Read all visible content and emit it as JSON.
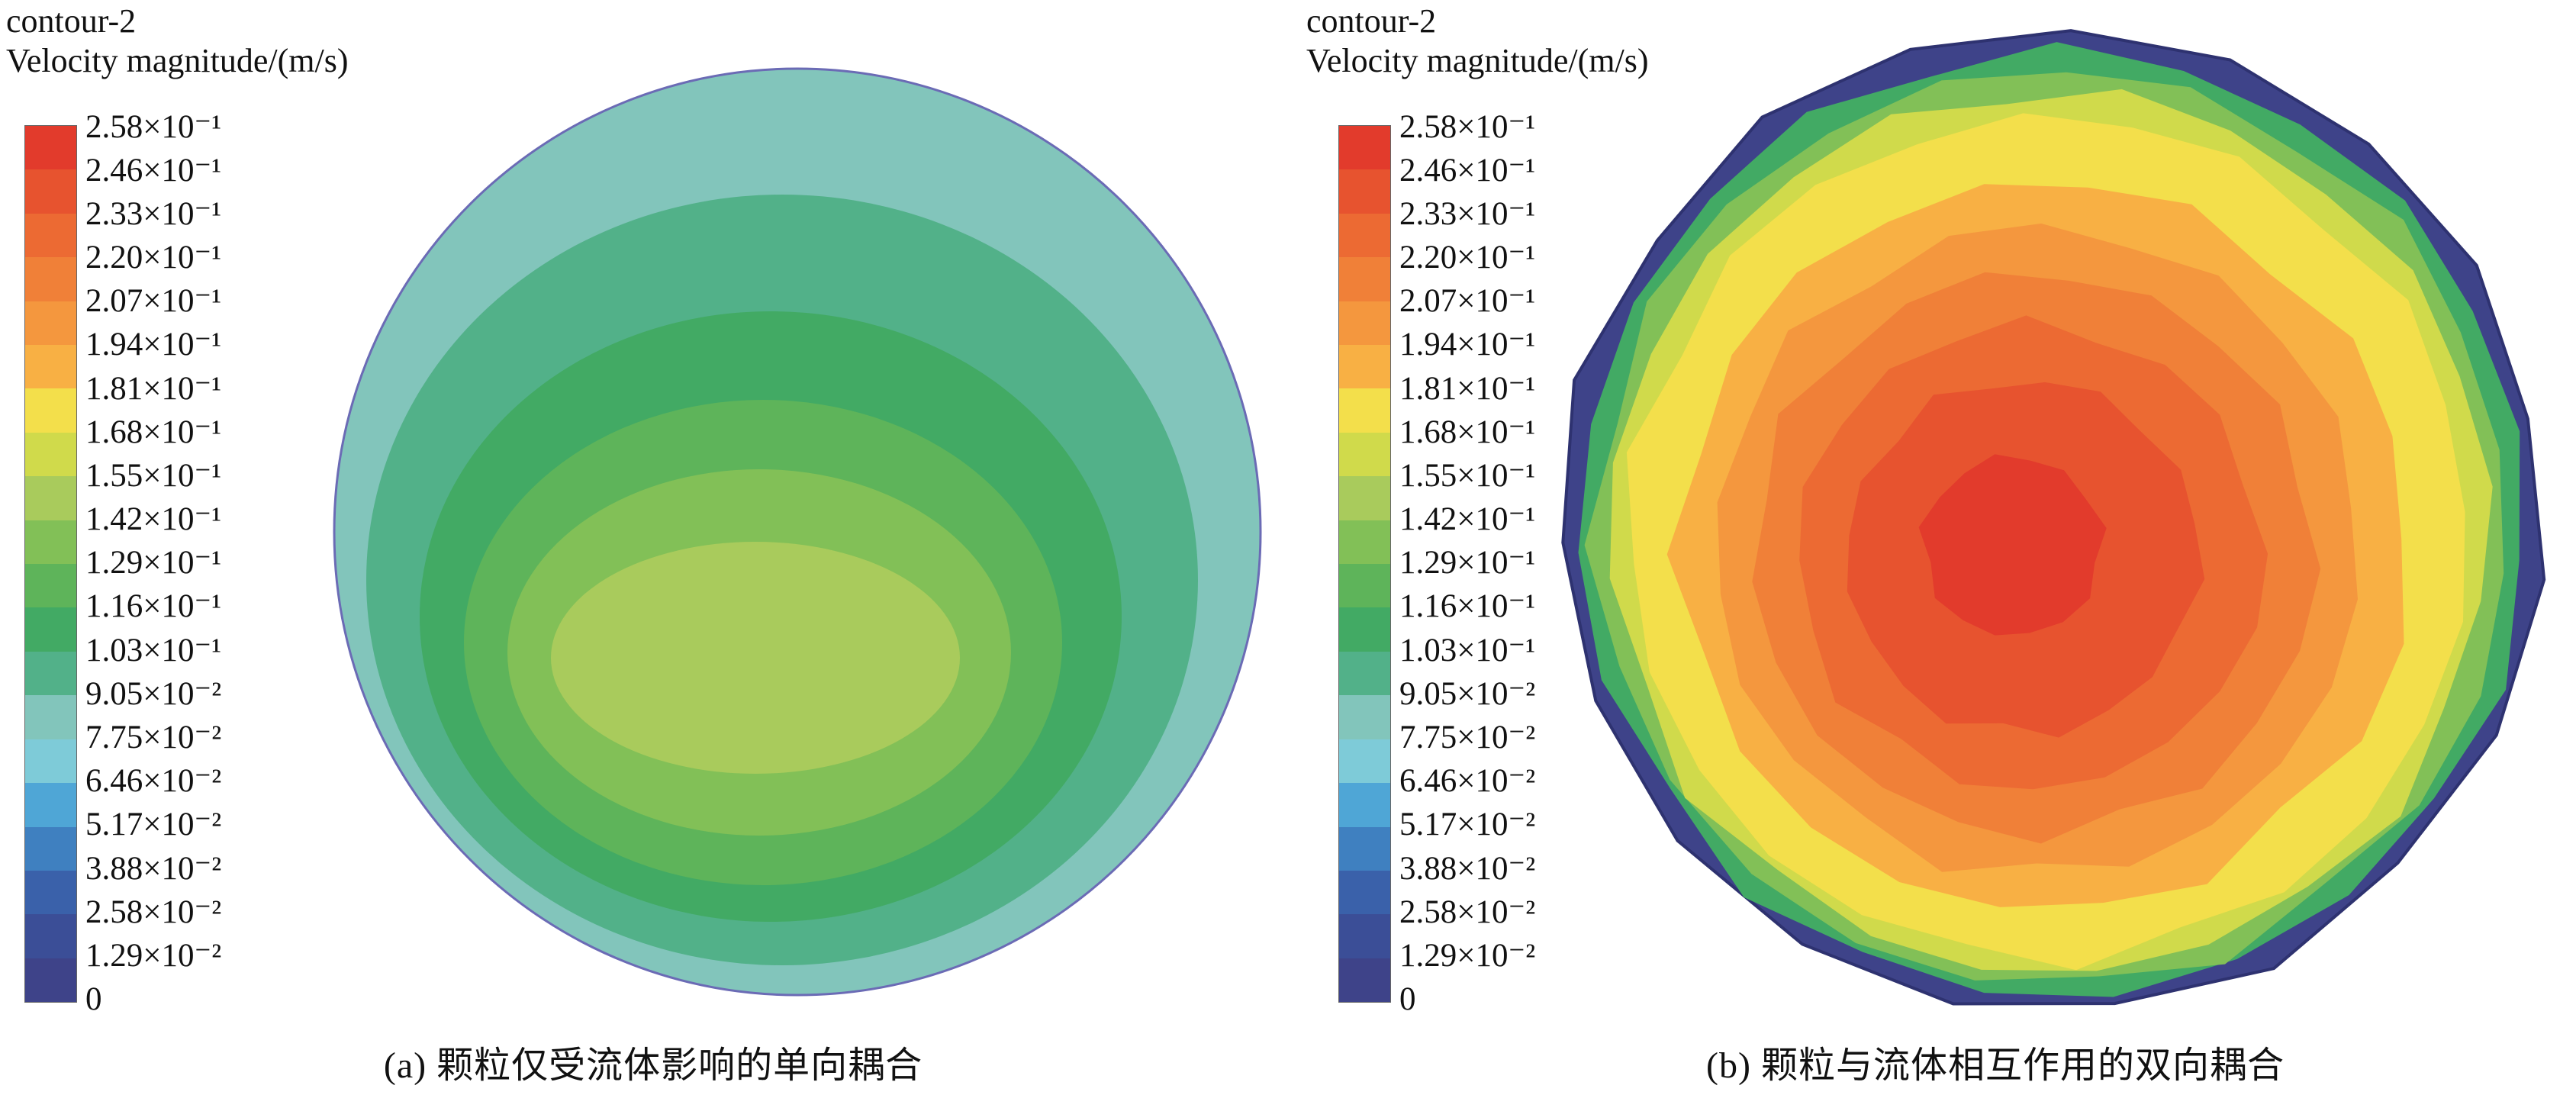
{
  "legend": {
    "labels": [
      "2.58×10⁻¹",
      "2.46×10⁻¹",
      "2.33×10⁻¹",
      "2.20×10⁻¹",
      "2.07×10⁻¹",
      "1.94×10⁻¹",
      "1.81×10⁻¹",
      "1.68×10⁻¹",
      "1.55×10⁻¹",
      "1.42×10⁻¹",
      "1.29×10⁻¹",
      "1.16×10⁻¹",
      "1.03×10⁻¹",
      "9.05×10⁻²",
      "7.75×10⁻²",
      "6.46×10⁻²",
      "5.17×10⁻²",
      "3.88×10⁻²",
      "2.58×10⁻²",
      "1.29×10⁻²",
      "0"
    ],
    "colors": [
      "#e23b2c",
      "#e7532f",
      "#ec6a33",
      "#f08038",
      "#f4973e",
      "#f8b044",
      "#f3df4b",
      "#d0da4b",
      "#a9cb5c",
      "#82c057",
      "#5eb45a",
      "#42aa64",
      "#52b189",
      "#82c5bb",
      "#7ecbd8",
      "#4fa6d6",
      "#3f80c0",
      "#3a61aa",
      "#3b4e97",
      "#3e4389"
    ],
    "outline_color_a": "#6b6bb5",
    "outline_color_b": "#2e3270"
  },
  "panels": {
    "a": {
      "title": "contour-2",
      "variable": "Velocity magnitude/(m/s)",
      "caption": "(a) 颗粒仅受流体影响的单向耦合"
    },
    "b": {
      "title": "contour-2",
      "variable": "Velocity magnitude/(m/s)",
      "caption": "(b) 颗粒与流体相互作用的双向耦合"
    }
  },
  "chart_data": [
    {
      "type": "heatmap",
      "subtype": "filled-contour",
      "title": "contour-2",
      "colorbar_label": "Velocity magnitude/(m/s)",
      "caption": "(a) 颗粒仅受流体影响的单向耦合",
      "units": "m/s",
      "domain_shape": "circle",
      "levels": [
        0,
        0.0129,
        0.0258,
        0.0388,
        0.0517,
        0.0646,
        0.0775,
        0.0905,
        0.103,
        0.116,
        0.129,
        0.142,
        0.155,
        0.168,
        0.181,
        0.194,
        0.207,
        0.22,
        0.233,
        0.246,
        0.258
      ],
      "legend_position": "left",
      "observed_pattern": "Mostly uniform low velocity: outer region ≈0.0775–0.0905 m/s (teal); nested contours increase toward a lower-central elliptical core reaching ≈0.142–0.155 m/s (yellow-green).",
      "ring_levels_outside_in": [
        0.0775,
        0.0905,
        0.103,
        0.116,
        0.129,
        0.142
      ]
    },
    {
      "type": "heatmap",
      "subtype": "filled-contour",
      "title": "contour-2",
      "colorbar_label": "Velocity magnitude/(m/s)",
      "caption": "(b) 颗粒与流体相互作用的双向耦合",
      "units": "m/s",
      "domain_shape": "circle (faceted polygonal contours)",
      "levels": [
        0,
        0.0129,
        0.0258,
        0.0388,
        0.0517,
        0.0646,
        0.0775,
        0.0905,
        0.103,
        0.116,
        0.129,
        0.142,
        0.155,
        0.168,
        0.181,
        0.194,
        0.207,
        0.22,
        0.233,
        0.246,
        0.258
      ],
      "legend_position": "left",
      "observed_pattern": "Strong gradient at wall: thin dark-blue boundary band ≈0–0.013 m/s, rising quickly through green (≈0.10–0.13), yellow (≈0.17–0.19) and orange bands to a broad red central core ≈0.233–0.258 m/s.",
      "ring_levels_outside_in": [
        0.0129,
        0.103,
        0.129,
        0.155,
        0.168,
        0.181,
        0.194,
        0.207,
        0.22,
        0.233,
        0.246
      ]
    }
  ]
}
